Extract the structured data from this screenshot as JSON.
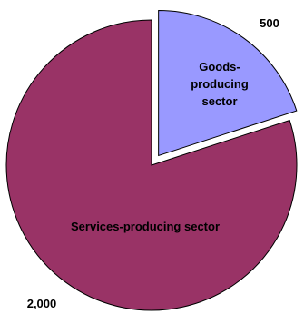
{
  "chart_data": {
    "type": "pie",
    "title": "",
    "categories": [
      "Goods-producing sector",
      "Services-producing sector"
    ],
    "values": [
      500,
      2000
    ],
    "value_labels": [
      "500",
      "2,000"
    ],
    "slice_text": [
      [
        "Goods-",
        "producing",
        "sector"
      ],
      [
        "Services-producing sector"
      ]
    ],
    "colors": [
      "#9999FF",
      "#993366"
    ],
    "exploded": "Goods-producing sector",
    "legend": "none"
  }
}
